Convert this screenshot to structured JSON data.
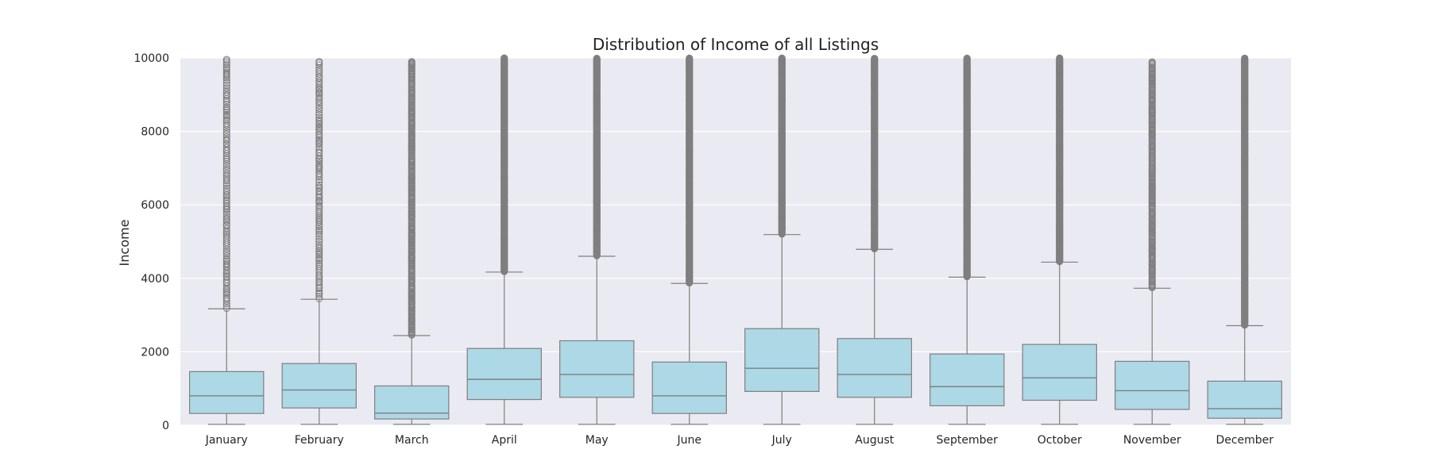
{
  "chart_data": {
    "type": "box",
    "title": "Distribution of Income of all Listings",
    "xlabel": "",
    "ylabel": "Income",
    "ylim": [
      0,
      10000
    ],
    "yticks": [
      0,
      2000,
      4000,
      6000,
      8000,
      10000
    ],
    "grid": true,
    "colors": {
      "plot_background": "#eaeaf2",
      "box_fill": "#add8e6",
      "line": "#7f7f7f",
      "grid": "#ffffff"
    },
    "categories": [
      "January",
      "February",
      "March",
      "April",
      "May",
      "June",
      "July",
      "August",
      "September",
      "October",
      "November",
      "December"
    ],
    "boxes": [
      {
        "whisker_low": 25,
        "q1": 320,
        "median": 800,
        "q3": 1460,
        "whisker_high": 3170,
        "outliers_from": 3170,
        "outliers_to": 10000,
        "outlier_density": "sparse"
      },
      {
        "whisker_low": 25,
        "q1": 470,
        "median": 960,
        "q3": 1680,
        "whisker_high": 3430,
        "outliers_from": 3430,
        "outliers_to": 9900,
        "outlier_density": "sparse"
      },
      {
        "whisker_low": 25,
        "q1": 170,
        "median": 330,
        "q3": 1070,
        "whisker_high": 2440,
        "outliers_from": 2440,
        "outliers_to": 9900,
        "outlier_density": "medium"
      },
      {
        "whisker_low": 25,
        "q1": 700,
        "median": 1250,
        "q3": 2090,
        "whisker_high": 4170,
        "outliers_from": 4170,
        "outliers_to": 10000,
        "outlier_density": "dense"
      },
      {
        "whisker_low": 25,
        "q1": 760,
        "median": 1380,
        "q3": 2300,
        "whisker_high": 4600,
        "outliers_from": 4600,
        "outliers_to": 10000,
        "outlier_density": "dense"
      },
      {
        "whisker_low": 25,
        "q1": 320,
        "median": 800,
        "q3": 1720,
        "whisker_high": 3860,
        "outliers_from": 3860,
        "outliers_to": 10000,
        "outlier_density": "dense"
      },
      {
        "whisker_low": 25,
        "q1": 920,
        "median": 1550,
        "q3": 2630,
        "whisker_high": 5190,
        "outliers_from": 5190,
        "outliers_to": 10000,
        "outlier_density": "dense"
      },
      {
        "whisker_low": 25,
        "q1": 760,
        "median": 1380,
        "q3": 2360,
        "whisker_high": 4790,
        "outliers_from": 4790,
        "outliers_to": 10000,
        "outlier_density": "dense"
      },
      {
        "whisker_low": 25,
        "q1": 530,
        "median": 1050,
        "q3": 1940,
        "whisker_high": 4030,
        "outliers_from": 4030,
        "outliers_to": 10000,
        "outlier_density": "dense"
      },
      {
        "whisker_low": 25,
        "q1": 680,
        "median": 1290,
        "q3": 2200,
        "whisker_high": 4440,
        "outliers_from": 4440,
        "outliers_to": 10000,
        "outlier_density": "dense"
      },
      {
        "whisker_low": 25,
        "q1": 430,
        "median": 940,
        "q3": 1740,
        "whisker_high": 3730,
        "outliers_from": 3730,
        "outliers_to": 9900,
        "outlier_density": "medium"
      },
      {
        "whisker_low": 25,
        "q1": 190,
        "median": 450,
        "q3": 1200,
        "whisker_high": 2710,
        "outliers_from": 2710,
        "outliers_to": 10000,
        "outlier_density": "dense"
      }
    ]
  }
}
